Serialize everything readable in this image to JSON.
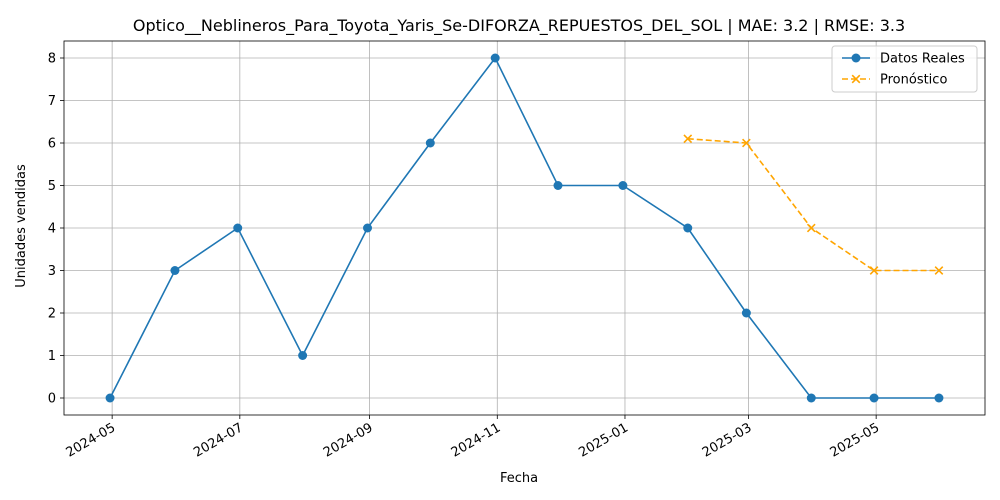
{
  "chart_data": {
    "type": "line",
    "title": "Optico__Neblineros_Para_Toyota_Yaris_Se-DIFORZA_REPUESTOS_DEL_SOL | MAE: 3.2 | RMSE: 3.3",
    "xlabel": "Fecha",
    "ylabel": "Unidades vendidas",
    "x_range": [
      "2024-04-08",
      "2025-06-22"
    ],
    "ylim": [
      -0.4,
      8.4
    ],
    "grid": true,
    "legend_position": "upper right",
    "x_ticks": [
      "2024-05",
      "2024-07",
      "2024-09",
      "2024-11",
      "2025-01",
      "2025-03",
      "2025-05"
    ],
    "x_tick_dates": [
      "2024-05-01",
      "2024-07-01",
      "2024-09-01",
      "2024-11-01",
      "2025-01-01",
      "2025-03-01",
      "2025-05-01"
    ],
    "y_ticks": [
      0,
      1,
      2,
      3,
      4,
      5,
      6,
      7,
      8
    ],
    "series": [
      {
        "name": "Datos Reales",
        "color": "#1f77b4",
        "style": "solid",
        "marker": "circle",
        "points": [
          {
            "x": "2024-04-30",
            "y": 0
          },
          {
            "x": "2024-05-31",
            "y": 3
          },
          {
            "x": "2024-06-30",
            "y": 4
          },
          {
            "x": "2024-07-31",
            "y": 1
          },
          {
            "x": "2024-08-31",
            "y": 4
          },
          {
            "x": "2024-09-30",
            "y": 6
          },
          {
            "x": "2024-10-31",
            "y": 8
          },
          {
            "x": "2024-11-30",
            "y": 5
          },
          {
            "x": "2024-12-31",
            "y": 5
          },
          {
            "x": "2025-01-31",
            "y": 4
          },
          {
            "x": "2025-02-28",
            "y": 2
          },
          {
            "x": "2025-03-31",
            "y": 0
          },
          {
            "x": "2025-04-30",
            "y": 0
          },
          {
            "x": "2025-05-31",
            "y": 0
          }
        ]
      },
      {
        "name": "Pronóstico",
        "color": "#ffa500",
        "style": "dashed",
        "marker": "x",
        "points": [
          {
            "x": "2025-01-31",
            "y": 6.1
          },
          {
            "x": "2025-02-28",
            "y": 6
          },
          {
            "x": "2025-03-31",
            "y": 4
          },
          {
            "x": "2025-04-30",
            "y": 3
          },
          {
            "x": "2025-05-31",
            "y": 3
          }
        ]
      }
    ]
  }
}
